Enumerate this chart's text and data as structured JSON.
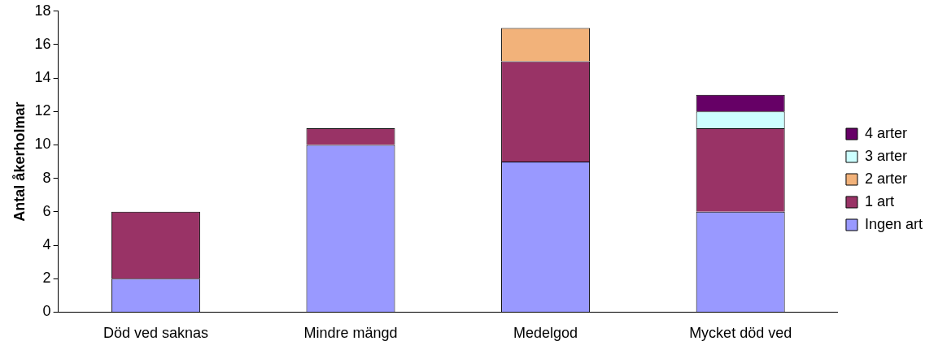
{
  "chart_data": {
    "type": "bar",
    "stacked": true,
    "ylabel": "Antal åkerholmar",
    "categories": [
      "Död ved saknas",
      "Mindre mängd",
      "Medelgod",
      "Mycket död ved"
    ],
    "series": [
      {
        "name": "Ingen art",
        "color": "#9999ff",
        "values": [
          2,
          10,
          9,
          6
        ]
      },
      {
        "name": "1 art",
        "color": "#993366",
        "values": [
          4,
          1,
          6,
          5
        ]
      },
      {
        "name": "2 arter",
        "color": "#f2b27a",
        "values": [
          null,
          null,
          2,
          null
        ]
      },
      {
        "name": "3 arter",
        "color": "#ccffff",
        "values": [
          null,
          null,
          null,
          1
        ]
      },
      {
        "name": "4 arter",
        "color": "#660066",
        "values": [
          null,
          null,
          null,
          1
        ]
      }
    ],
    "ylim": [
      0,
      18
    ],
    "yticks": [
      0,
      2,
      4,
      6,
      8,
      10,
      12,
      14,
      16,
      18
    ],
    "grid": false,
    "legend": "right"
  }
}
